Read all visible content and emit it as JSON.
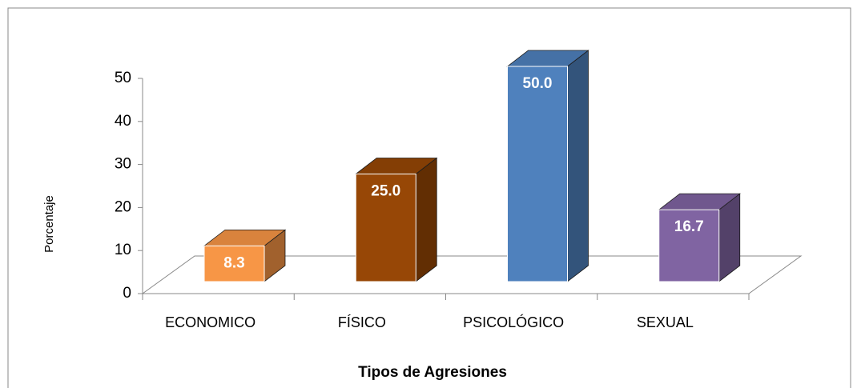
{
  "chart_data": {
    "type": "bar3d",
    "x_label": "Tipos de Agresiones",
    "y_label": "Porcentaje",
    "categories": [
      "ECONOMICO",
      "FÍSICO",
      "PSICOLÓGICO",
      "SEXUAL"
    ],
    "values": [
      8.3,
      25.0,
      50.0,
      16.7
    ],
    "value_labels": [
      "8.3",
      "25.0",
      "50.0",
      "16.7"
    ],
    "colors": [
      "#f79646",
      "#974706",
      "#4f81bd",
      "#8064a2"
    ],
    "ylim": [
      0,
      50
    ],
    "yticks": [
      0,
      10,
      20,
      30,
      40,
      50
    ]
  }
}
